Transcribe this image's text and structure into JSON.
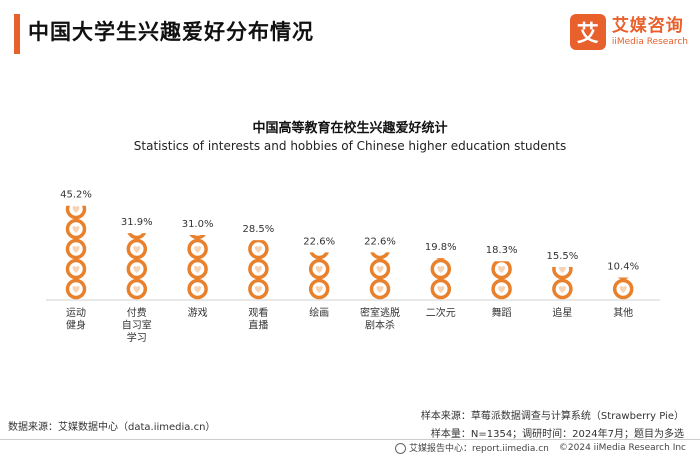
{
  "header": {
    "title": "中国大学生兴趣爱好分布情况",
    "logo_mark": "艾",
    "logo_cn": "艾媒咨询",
    "logo_en": "iiMedia Research"
  },
  "chart_data": {
    "type": "bar",
    "title": "中国高等教育在校生兴趣爱好统计",
    "subtitle": "Statistics of interests and hobbies of Chinese higher education students",
    "categories": [
      [
        "运动",
        "健身"
      ],
      [
        "付费",
        "自习室",
        "学习"
      ],
      [
        "游戏"
      ],
      [
        "观看",
        "直播"
      ],
      [
        "绘画"
      ],
      [
        "密室逃脱",
        "剧本杀"
      ],
      [
        "二次元"
      ],
      [
        "舞蹈"
      ],
      [
        "追星"
      ],
      [
        "其他"
      ]
    ],
    "values": [
      45.2,
      31.9,
      31.0,
      28.5,
      22.6,
      22.6,
      19.8,
      18.3,
      15.5,
      10.4
    ],
    "value_labels": [
      "45.2%",
      "31.9%",
      "31.0%",
      "28.5%",
      "22.6%",
      "22.6%",
      "19.8%",
      "18.3%",
      "15.5%",
      "10.4%"
    ],
    "ylim": [
      0,
      47
    ],
    "grid": false,
    "color": "#e8802c"
  },
  "sources": {
    "left": "数据来源：艾媒数据中心（data.iimedia.cn）",
    "sample_source": "样本来源：草莓派数据调查与计算系统（Strawberry Pie）",
    "sample_info": "样本量：N=1354；调研时间：2024年7月；题目为多选"
  },
  "footer": {
    "report": "艾媒报告中心：report.iimedia.cn",
    "copyright": "©2024  iiMedia Research  Inc"
  }
}
